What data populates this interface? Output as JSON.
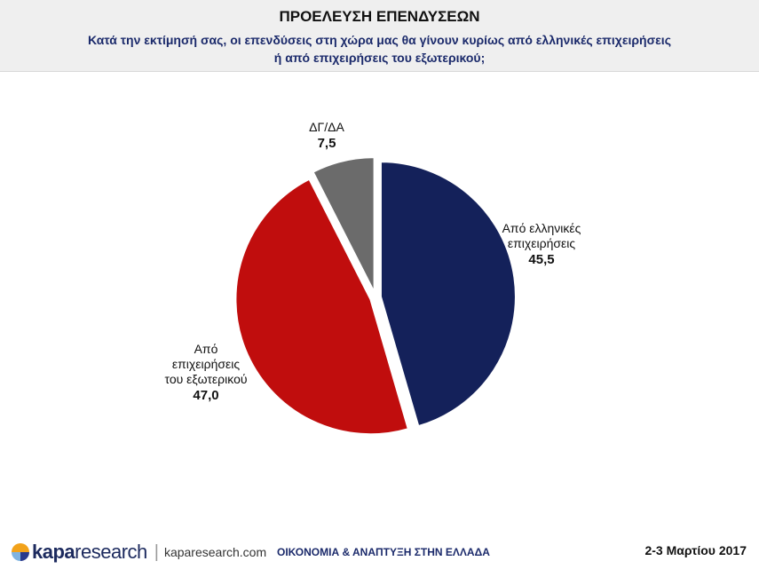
{
  "header": {
    "title": "ΠΡΟΕΛΕΥΣΗ ΕΠΕΝΔΥΣΕΩΝ",
    "subtitle_line1": "Κατά την εκτίμησή σας, οι επενδύσεις στη χώρα μας θα γίνουν κυρίως από ελληνικές επιχειρήσεις",
    "subtitle_line2": "ή από επιχειρήσεις του εξωτερικού;"
  },
  "chart_data": {
    "type": "pie",
    "slices": [
      {
        "label_lines": [
          "Από ελληνικές",
          "επιχειρήσεις"
        ],
        "value": 45.5,
        "value_text": "45,5",
        "color": "#14215a"
      },
      {
        "label_lines": [
          "Από",
          "επιχειρήσεις",
          "του εξωτερικού"
        ],
        "value": 47.0,
        "value_text": "47,0",
        "color": "#c00d0d"
      },
      {
        "label_lines": [
          "ΔΓ/ΔΑ"
        ],
        "value": 7.5,
        "value_text": "7,5",
        "color": "#6b6b6b"
      }
    ],
    "start_angle": "12 o'clock, clockwise",
    "exploded": true
  },
  "footer": {
    "logo_bold": "kapa",
    "logo_light": "research",
    "website": "kaparesearch.com",
    "center_text": "ΟΙΚΟΝΟΜΙΑ & ΑΝΑΠΤΥΞΗ ΣΤΗΝ ΕΛΛΑΔΑ",
    "date": "2-3 Μαρτίου 2017",
    "logo_colors": [
      "#f2a21a",
      "#2a3a8c",
      "#7fb3e0",
      "#f2a21a"
    ]
  }
}
